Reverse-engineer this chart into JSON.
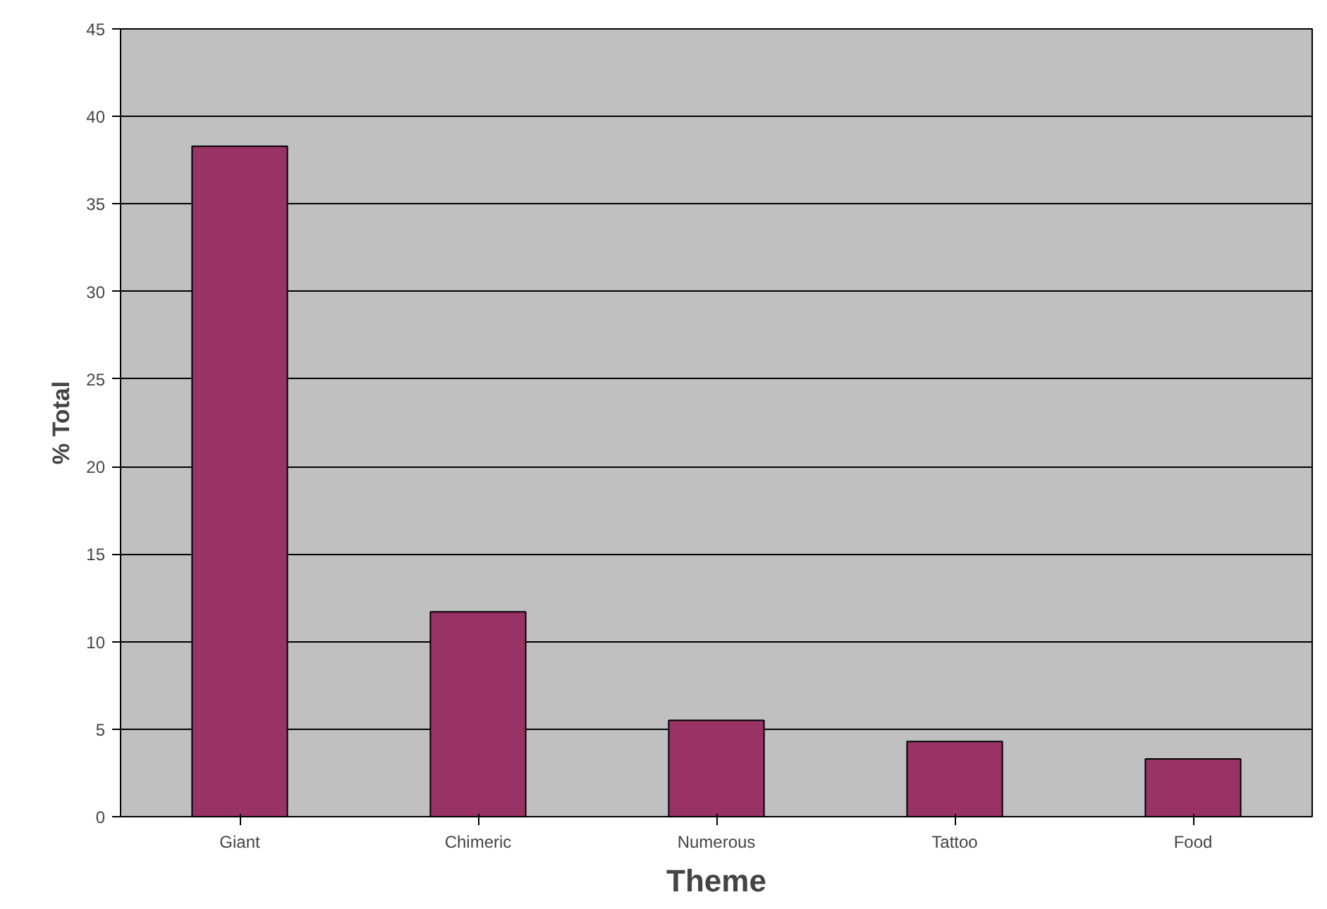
{
  "chart_data": {
    "type": "bar",
    "xlabel": "Theme",
    "ylabel": "% Total",
    "categories": [
      "Giant",
      "Chimeric",
      "Numerous",
      "Tattoo",
      "Food"
    ],
    "values": [
      38.3,
      11.7,
      5.5,
      4.3,
      3.3
    ],
    "color": "#993366",
    "ylim": [
      0,
      45
    ],
    "yticks": [
      0,
      5,
      10,
      15,
      20,
      25,
      30,
      35,
      40,
      45
    ],
    "grid": "y"
  }
}
